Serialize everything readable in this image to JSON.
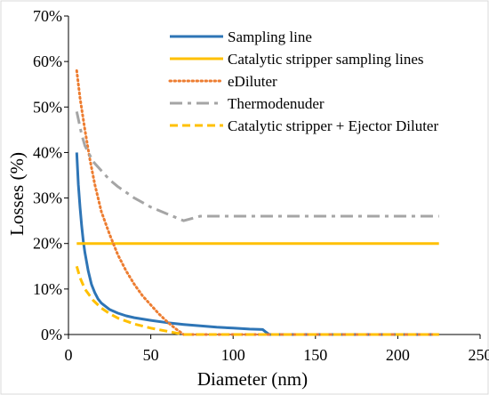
{
  "chart_data": {
    "type": "line",
    "xlabel": "Diameter (nm)",
    "ylabel": "Losses (%)",
    "xlim": [
      0,
      250
    ],
    "ylim": [
      0,
      70
    ],
    "x_ticks": [
      0,
      50,
      100,
      150,
      200,
      250
    ],
    "x_tick_labels": [
      "0",
      "50",
      "100",
      "150",
      "200",
      "250"
    ],
    "y_ticks": [
      0,
      10,
      20,
      30,
      40,
      50,
      60,
      70
    ],
    "y_tick_labels": [
      "0%",
      "10%",
      "20%",
      "30%",
      "40%",
      "50%",
      "60%",
      "70%"
    ],
    "grid": false,
    "legend_position": "top-right",
    "series": [
      {
        "name": "Sampling line",
        "color": "#2E75B6",
        "dash": "solid",
        "x": [
          5,
          6,
          7,
          8,
          9,
          10,
          12,
          14,
          16,
          18,
          20,
          25,
          30,
          35,
          40,
          50,
          60,
          70,
          80,
          90,
          100,
          110,
          118,
          120,
          122,
          130,
          150,
          175,
          200,
          225
        ],
        "y": [
          40,
          33,
          28,
          24,
          20.5,
          18,
          14,
          11,
          9.2,
          7.8,
          6.9,
          5.5,
          4.7,
          4.1,
          3.7,
          3.1,
          2.6,
          2.2,
          1.9,
          1.6,
          1.4,
          1.2,
          1.1,
          0.5,
          0,
          0,
          0,
          0,
          0,
          0
        ]
      },
      {
        "name": "Catalytic stripper sampling lines",
        "color": "#FFC000",
        "dash": "solid",
        "x": [
          5,
          225
        ],
        "y": [
          20,
          20
        ]
      },
      {
        "name": "eDiluter",
        "color": "#ED7D31",
        "dash": "dotted",
        "x": [
          5,
          7,
          10,
          13,
          16,
          20,
          25,
          30,
          35,
          40,
          45,
          50,
          55,
          60,
          65,
          70,
          80,
          100,
          150,
          225
        ],
        "y": [
          58,
          52,
          45,
          38.5,
          33,
          27,
          22,
          17.5,
          14,
          11,
          8.5,
          6.5,
          4.5,
          2.8,
          1.3,
          0,
          0,
          0,
          0,
          0
        ]
      },
      {
        "name": "Thermodenuder",
        "color": "#A5A5A5",
        "dash": "dashdot",
        "x": [
          5,
          8,
          10,
          15,
          20,
          25,
          30,
          40,
          50,
          60,
          70,
          80,
          100,
          150,
          200,
          225
        ],
        "y": [
          49,
          44,
          41.5,
          38,
          36,
          34,
          32.5,
          30,
          28,
          26.5,
          25,
          26,
          26,
          26,
          26,
          26
        ]
      },
      {
        "name": "Catalytic stripper + Ejector Diluter",
        "color": "#FFC000",
        "dash": "dashed",
        "x": [
          5,
          7,
          10,
          15,
          20,
          25,
          30,
          40,
          50,
          60,
          70,
          80,
          100,
          150,
          225
        ],
        "y": [
          15,
          12.5,
          10,
          7.5,
          5.8,
          4.6,
          3.6,
          2.3,
          1.4,
          0.7,
          0,
          0,
          0,
          0,
          0
        ]
      }
    ]
  }
}
